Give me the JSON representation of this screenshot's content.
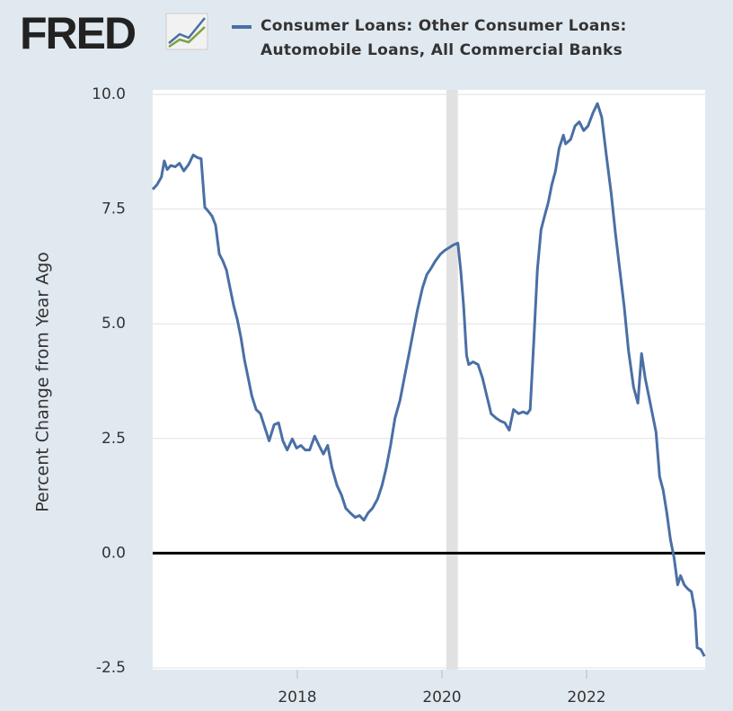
{
  "chart_data": {
    "type": "line",
    "logo": "FRED",
    "ylabel": "Percent Change from Year Ago",
    "x": [
      2016.0,
      2016.06,
      2016.12,
      2016.16,
      2016.2,
      2016.25,
      2016.31,
      2016.37,
      2016.43,
      2016.5,
      2016.56,
      2016.62,
      2016.67,
      2016.72,
      2016.77,
      2016.82,
      2016.87,
      2016.92,
      2016.97,
      2017.02,
      2017.07,
      2017.12,
      2017.17,
      2017.22,
      2017.27,
      2017.32,
      2017.37,
      2017.43,
      2017.49,
      2017.55,
      2017.61,
      2017.68,
      2017.74,
      2017.8,
      2017.86,
      2017.93,
      2017.99,
      2018.05,
      2018.11,
      2018.17,
      2018.24,
      2018.3,
      2018.36,
      2018.42,
      2018.48,
      2018.55,
      2018.61,
      2018.67,
      2018.73,
      2018.8,
      2018.86,
      2018.92,
      2018.98,
      2019.04,
      2019.11,
      2019.17,
      2019.23,
      2019.29,
      2019.35,
      2019.42,
      2019.48,
      2019.54,
      2019.6,
      2019.66,
      2019.73,
      2019.79,
      2019.85,
      2019.91,
      2019.98,
      2020.04,
      2020.1,
      2020.16,
      2020.22,
      2020.26,
      2020.3,
      2020.34,
      2020.37,
      2020.43,
      2020.5,
      2020.56,
      2020.62,
      2020.68,
      2020.75,
      2020.81,
      2020.87,
      2020.93,
      2020.99,
      2021.06,
      2021.12,
      2021.18,
      2021.22,
      2021.27,
      2021.32,
      2021.37,
      2021.42,
      2021.47,
      2021.52,
      2021.57,
      2021.62,
      2021.68,
      2021.71,
      2021.78,
      2021.84,
      2021.9,
      2021.96,
      2022.02,
      2022.09,
      2022.15,
      2022.21,
      2022.27,
      2022.34,
      2022.4,
      2022.46,
      2022.52,
      2022.58,
      2022.65,
      2022.71,
      2022.76,
      2022.81,
      2022.86,
      2022.91,
      2022.96,
      2023.01,
      2023.06,
      2023.11,
      2023.16,
      2023.21,
      2023.26,
      2023.3,
      2023.35,
      2023.4,
      2023.45,
      2023.5,
      2023.53,
      2023.58,
      2023.63
    ],
    "series": [
      {
        "name": "Consumer Loans: Other Consumer Loans: Automobile Loans, All Commercial Banks",
        "color": "#4a6fa5",
        "values": [
          7.93,
          8.03,
          8.2,
          8.55,
          8.36,
          8.45,
          8.42,
          8.5,
          8.33,
          8.48,
          8.68,
          8.62,
          8.6,
          7.54,
          7.45,
          7.35,
          7.15,
          6.52,
          6.37,
          6.17,
          5.78,
          5.39,
          5.09,
          4.7,
          4.21,
          3.82,
          3.43,
          3.13,
          3.04,
          2.74,
          2.45,
          2.8,
          2.84,
          2.45,
          2.25,
          2.49,
          2.29,
          2.35,
          2.25,
          2.25,
          2.55,
          2.35,
          2.16,
          2.35,
          1.86,
          1.47,
          1.27,
          0.98,
          0.88,
          0.78,
          0.82,
          0.72,
          0.88,
          0.98,
          1.18,
          1.47,
          1.86,
          2.35,
          2.94,
          3.33,
          3.82,
          4.31,
          4.8,
          5.29,
          5.78,
          6.07,
          6.21,
          6.37,
          6.52,
          6.6,
          6.66,
          6.72,
          6.76,
          6.17,
          5.39,
          4.31,
          4.11,
          4.17,
          4.11,
          3.82,
          3.43,
          3.04,
          2.94,
          2.88,
          2.84,
          2.68,
          3.13,
          3.04,
          3.08,
          3.04,
          3.13,
          4.6,
          6.17,
          7.05,
          7.35,
          7.64,
          8.03,
          8.33,
          8.82,
          9.11,
          8.92,
          9.02,
          9.31,
          9.4,
          9.21,
          9.31,
          9.6,
          9.8,
          9.5,
          8.72,
          7.84,
          6.96,
          6.17,
          5.39,
          4.41,
          3.62,
          3.27,
          4.35,
          3.82,
          3.43,
          3.04,
          2.64,
          1.67,
          1.37,
          0.88,
          0.29,
          -0.1,
          -0.69,
          -0.49,
          -0.69,
          -0.78,
          -0.84,
          -1.27,
          -2.06,
          -2.1,
          -2.25
        ]
      }
    ],
    "xlim": [
      2016.0,
      2023.64
    ],
    "xticks": [
      2018,
      2020,
      2022
    ],
    "ylim": [
      -2.5,
      10
    ],
    "yticks": [
      {
        "value": 10,
        "label": "10.0"
      },
      7.5,
      {
        "value": 5,
        "label": "5.0"
      },
      2.5,
      {
        "value": 0,
        "label": "0.0"
      },
      -2.5
    ],
    "grid": true,
    "zero_line": true,
    "recessions": [
      {
        "start": 2020.06,
        "end": 2020.22
      }
    ]
  }
}
